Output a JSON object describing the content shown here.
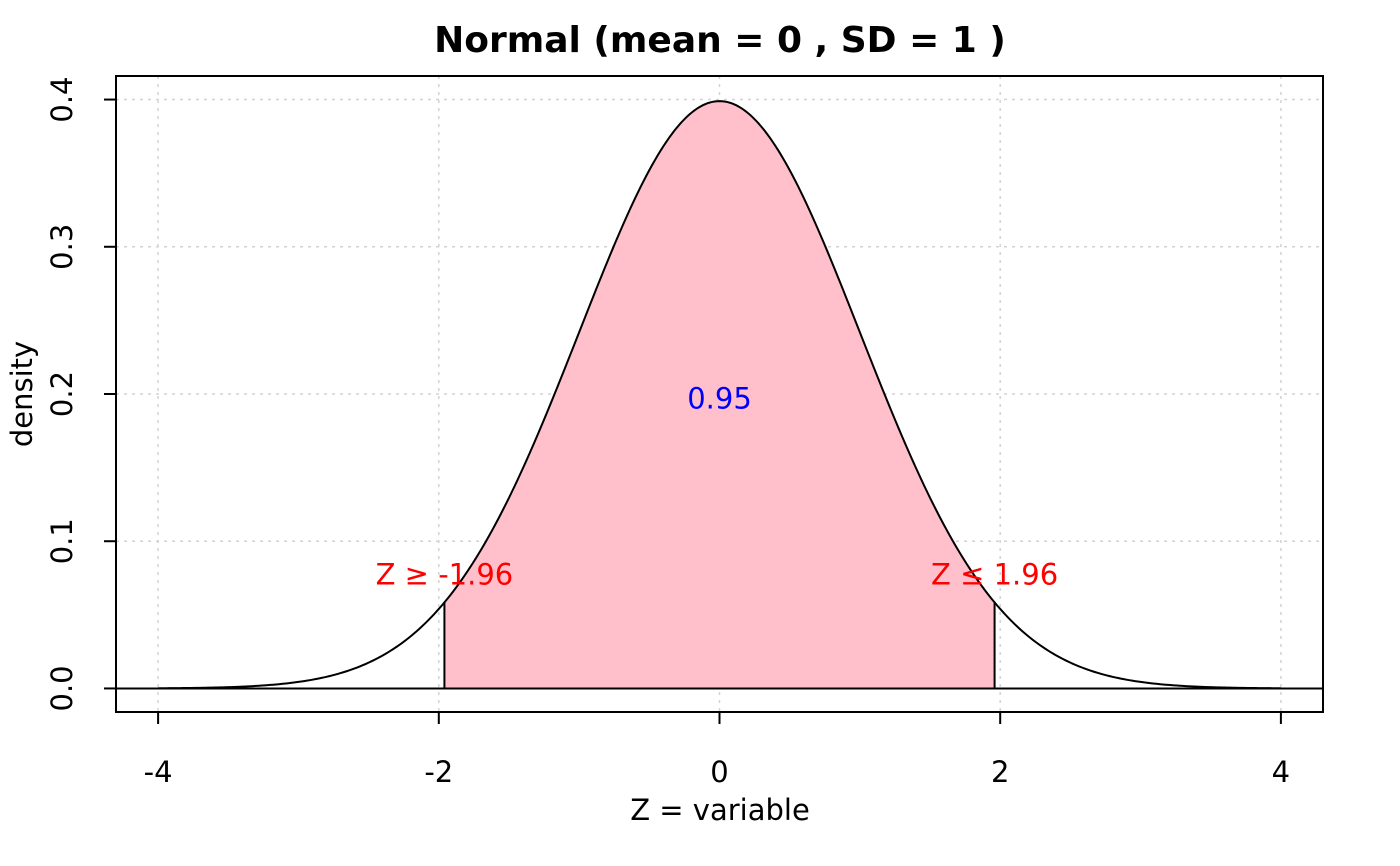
{
  "chart_data": {
    "type": "area",
    "title": "Normal (mean = 0 , SD =  1 )",
    "xlabel": "Z  = variable",
    "ylabel": "density",
    "distribution": {
      "mean": 0,
      "sd": 1
    },
    "xlim": [
      -4.3,
      4.3
    ],
    "ylim": [
      -0.016,
      0.416
    ],
    "x_ticks": [
      -4,
      -2,
      0,
      2,
      4
    ],
    "x_tick_labels": [
      "-4",
      "-2",
      "0",
      "2",
      "4"
    ],
    "y_ticks": [
      0.0,
      0.1,
      0.2,
      0.3,
      0.4
    ],
    "y_tick_labels": [
      "0.0",
      "0.1",
      "0.2",
      "0.3",
      "0.4"
    ],
    "grid": true,
    "shaded_region": {
      "from": -1.96,
      "to": 1.96,
      "area": 0.95
    },
    "annotations": [
      {
        "text": "Z  ≥ -1.96",
        "x": -1.96,
        "y": 0.0775,
        "color": "#ff0000"
      },
      {
        "text": "Z ≤ 1.96",
        "x": 1.96,
        "y": 0.0775,
        "color": "#ff0000"
      },
      {
        "text": "0.95",
        "x": 0,
        "y": 0.197,
        "color": "#0000ff"
      }
    ],
    "colors": {
      "fill": "#ffc0cb",
      "curve": "#000000",
      "grid": "#d3d3d3"
    }
  }
}
